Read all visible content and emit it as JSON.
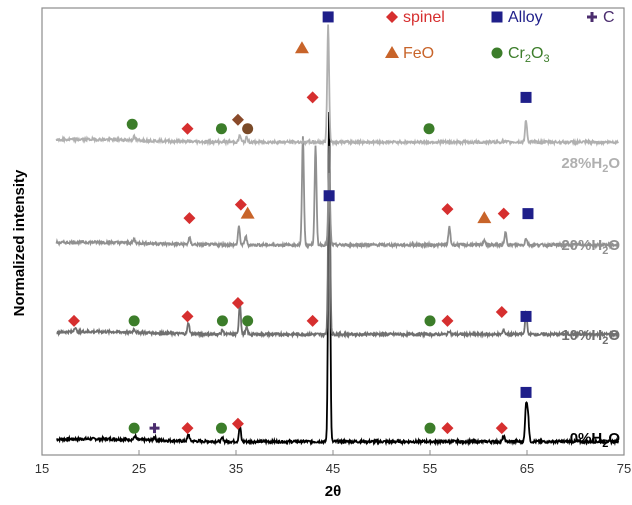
{
  "chart_data": {
    "type": "line",
    "title": "",
    "xlabel": "2θ",
    "ylabel": "Normalized intensity",
    "xlim": [
      15,
      75
    ],
    "x_ticks": [
      15,
      25,
      35,
      45,
      55,
      65,
      75
    ],
    "x_tick_labels": [
      "15",
      "25",
      "35",
      "45",
      "55",
      "65",
      "75"
    ],
    "grid": false,
    "legend": [
      {
        "name": "spinel",
        "marker": "diamond",
        "color": "#d62f2f"
      },
      {
        "name": "Alloy",
        "marker": "square",
        "color": "#1f1f8a"
      },
      {
        "name": "C",
        "marker": "plus",
        "color": "#4b2d6e"
      },
      {
        "name": "FeO",
        "marker": "triangle",
        "color": "#c8642a"
      },
      {
        "name": "Cr",
        "sub": "2",
        "name2": "O",
        "sub2": "3",
        "marker": "circle",
        "color": "#3c7d2a"
      }
    ],
    "series": [
      {
        "name": "0%H",
        "name_sub": "2",
        "name_tail": "O",
        "color": "#000000",
        "baseline": 0.03,
        "peaks": [
          [
            24.6,
            0.008
          ],
          [
            26.6,
            0.008
          ],
          [
            30.1,
            0.015
          ],
          [
            33.6,
            0.008
          ],
          [
            35.4,
            0.035
          ],
          [
            44.6,
            0.74
          ],
          [
            62.6,
            0.012
          ],
          [
            64.9,
            0.08
          ],
          [
            65.1,
            0.06
          ]
        ],
        "markers": [
          {
            "type": "circle",
            "x": 24.5,
            "y": 0.06
          },
          {
            "type": "plus",
            "x": 26.6,
            "y": 0.06
          },
          {
            "type": "diamond",
            "x": 30.0,
            "y": 0.06
          },
          {
            "type": "circle",
            "x": 33.5,
            "y": 0.06
          },
          {
            "type": "diamond",
            "x": 35.2,
            "y": 0.07
          },
          {
            "type": "circle",
            "x": 55.0,
            "y": 0.06
          },
          {
            "type": "diamond",
            "x": 56.8,
            "y": 0.06
          },
          {
            "type": "diamond",
            "x": 62.4,
            "y": 0.06
          },
          {
            "type": "square",
            "x": 64.9,
            "y": 0.14
          }
        ]
      },
      {
        "name": "10%H",
        "name_sub": "2",
        "name_tail": "O",
        "color": "#707070",
        "baseline": 0.27,
        "peaks": [
          [
            18.4,
            0.01
          ],
          [
            24.5,
            0.008
          ],
          [
            30.1,
            0.025
          ],
          [
            33.6,
            0.01
          ],
          [
            35.4,
            0.07
          ],
          [
            36.1,
            0.015
          ],
          [
            44.6,
            0.42
          ],
          [
            57.0,
            0.008
          ],
          [
            62.6,
            0.01
          ],
          [
            64.9,
            0.05
          ]
        ],
        "markers": [
          {
            "type": "diamond",
            "x": 18.3,
            "y": 0.3
          },
          {
            "type": "circle",
            "x": 24.5,
            "y": 0.3
          },
          {
            "type": "diamond",
            "x": 30.0,
            "y": 0.31
          },
          {
            "type": "circle",
            "x": 33.6,
            "y": 0.3
          },
          {
            "type": "diamond",
            "x": 35.2,
            "y": 0.34
          },
          {
            "type": "circle",
            "x": 36.2,
            "y": 0.3
          },
          {
            "type": "diamond",
            "x": 42.9,
            "y": 0.3
          },
          {
            "type": "circle",
            "x": 55.0,
            "y": 0.3
          },
          {
            "type": "diamond",
            "x": 56.8,
            "y": 0.3
          },
          {
            "type": "diamond",
            "x": 62.4,
            "y": 0.32
          },
          {
            "type": "square",
            "x": 64.9,
            "y": 0.31
          }
        ]
      },
      {
        "name": "20%H",
        "name_sub": "2",
        "name_tail": "O",
        "color": "#909090",
        "baseline": 0.47,
        "peaks": [
          [
            24.5,
            0.008
          ],
          [
            30.2,
            0.015
          ],
          [
            35.3,
            0.04
          ],
          [
            36.0,
            0.02
          ],
          [
            41.9,
            0.24
          ],
          [
            43.2,
            0.22
          ],
          [
            44.6,
            0.16
          ],
          [
            57.0,
            0.04
          ],
          [
            60.6,
            0.012
          ],
          [
            62.8,
            0.03
          ],
          [
            64.9,
            0.015
          ]
        ],
        "markers": [
          {
            "type": "diamond",
            "x": 30.2,
            "y": 0.53
          },
          {
            "type": "diamond",
            "x": 35.5,
            "y": 0.56
          },
          {
            "type": "triangle",
            "x": 36.2,
            "y": 0.54
          },
          {
            "type": "square",
            "x": 44.6,
            "y": 0.58
          },
          {
            "type": "diamond",
            "x": 56.8,
            "y": 0.55
          },
          {
            "type": "triangle",
            "x": 60.6,
            "y": 0.53
          },
          {
            "type": "diamond",
            "x": 62.6,
            "y": 0.54
          },
          {
            "type": "square",
            "x": 65.1,
            "y": 0.54
          }
        ]
      },
      {
        "name": "28%H",
        "name_sub": "2",
        "name_tail": "O",
        "color": "#b0b0b0",
        "baseline": 0.7,
        "peaks": [
          [
            24.5,
            0.008
          ],
          [
            35.4,
            0.015
          ],
          [
            36.1,
            0.01
          ],
          [
            44.5,
            0.26
          ],
          [
            64.9,
            0.05
          ]
        ],
        "markers": [
          {
            "type": "circle",
            "x": 24.3,
            "y": 0.74
          },
          {
            "type": "diamond",
            "x": 30.0,
            "y": 0.73
          },
          {
            "type": "circle",
            "x": 33.5,
            "y": 0.73
          },
          {
            "type": "diamond",
            "x": 35.2,
            "y": 0.75,
            "color": "#8a4a2a"
          },
          {
            "type": "circle",
            "x": 36.2,
            "y": 0.73,
            "color": "#7a4a28"
          },
          {
            "type": "triangle",
            "x": 41.8,
            "y": 0.91
          },
          {
            "type": "diamond",
            "x": 42.9,
            "y": 0.8
          },
          {
            "type": "square",
            "x": 44.5,
            "y": 0.98
          },
          {
            "type": "circle",
            "x": 54.9,
            "y": 0.73
          },
          {
            "type": "square",
            "x": 64.9,
            "y": 0.8
          }
        ]
      }
    ]
  }
}
